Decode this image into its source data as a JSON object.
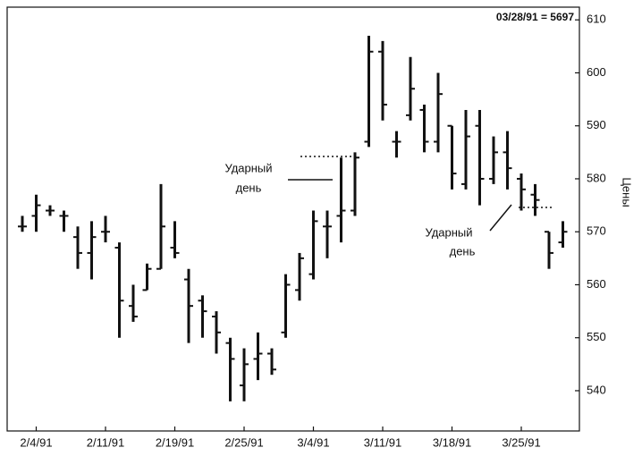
{
  "chart_data": {
    "type": "ohlc",
    "note_top": "03/28/91 = 5697",
    "y_label": "Цены",
    "annotations": [
      {
        "text": [
          "Ударный",
          "день"
        ]
      },
      {
        "text": [
          "Ударный",
          "день"
        ]
      }
    ],
    "categories": [
      null,
      "2/4/91",
      null,
      null,
      null,
      null,
      "2/11/91",
      null,
      null,
      null,
      null,
      "2/19/91",
      null,
      null,
      null,
      null,
      "2/25/91",
      null,
      null,
      null,
      null,
      "3/4/91",
      null,
      null,
      null,
      null,
      "3/11/91",
      null,
      null,
      null,
      null,
      "3/18/91",
      null,
      null,
      null,
      null,
      "3/25/91",
      null,
      null,
      null
    ],
    "open": [
      571,
      573,
      574,
      573,
      569,
      566,
      570,
      567,
      556,
      559,
      563,
      567,
      561,
      557,
      554,
      549,
      541,
      546,
      547,
      551,
      559,
      562,
      571,
      573,
      574,
      587,
      604,
      587,
      592,
      593,
      587,
      590,
      579,
      590,
      580,
      585,
      580,
      577,
      570,
      568
    ],
    "high": [
      573,
      577,
      575,
      574,
      571,
      572,
      573,
      568,
      560,
      564,
      579,
      572,
      563,
      558,
      555,
      550,
      548,
      551,
      548,
      562,
      566,
      574,
      574,
      584,
      585,
      607,
      606,
      589,
      603,
      594,
      600,
      590,
      593,
      593,
      588,
      589,
      581,
      579,
      570,
      572
    ],
    "low": [
      570,
      570,
      573,
      570,
      563,
      561,
      568,
      550,
      553,
      559,
      563,
      565,
      549,
      550,
      547,
      538,
      538,
      542,
      543,
      550,
      557,
      561,
      565,
      568,
      573,
      586,
      591,
      584,
      591,
      585,
      585,
      578,
      578,
      575,
      579,
      578,
      574,
      573,
      563,
      567
    ],
    "close": [
      571,
      575,
      574,
      573,
      566,
      569,
      570,
      557,
      554,
      563,
      571,
      566,
      556,
      555,
      551,
      546,
      545,
      547,
      544,
      560,
      565,
      572,
      571,
      574,
      584,
      604,
      594,
      587,
      597,
      587,
      596,
      581,
      588,
      580,
      585,
      582,
      578,
      576,
      566,
      570
    ],
    "color": "#111111",
    "ylim": [
      532.4,
      612.4
    ],
    "yticks": [
      540,
      550,
      560,
      570,
      580,
      590,
      600,
      610
    ]
  }
}
